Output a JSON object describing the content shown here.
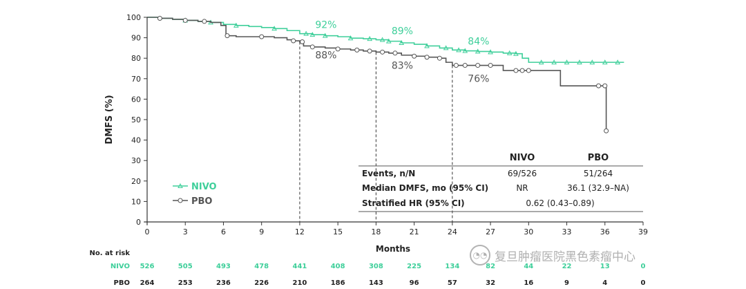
{
  "chart_data": {
    "type": "line",
    "subtype": "kaplan-meier",
    "ylabel": "DMFS (%)",
    "xlabel": "Months",
    "xlim": [
      0,
      39
    ],
    "ylim": [
      0,
      100
    ],
    "x_ticks": [
      0,
      3,
      6,
      9,
      12,
      15,
      18,
      21,
      24,
      27,
      30,
      33,
      36,
      39
    ],
    "y_ticks": [
      0,
      10,
      20,
      30,
      40,
      50,
      60,
      70,
      80,
      90,
      100
    ],
    "landmarks": [
      12,
      18,
      24
    ],
    "colors": {
      "nivo": "#3ecf9a",
      "pbo": "#555555"
    },
    "series": [
      {
        "name": "NIVO",
        "key": "nivo",
        "x": [
          0,
          1,
          2,
          3,
          4,
          5,
          6,
          7,
          8,
          9,
          10,
          11,
          12,
          13,
          14,
          15,
          16,
          17,
          18,
          19,
          20,
          21,
          22,
          23,
          24,
          25,
          26,
          27,
          28,
          29,
          29.5,
          30,
          31,
          32,
          33,
          34,
          35,
          36,
          37,
          37.5
        ],
        "y": [
          100,
          99.5,
          99,
          98.5,
          98,
          97.5,
          96.5,
          96,
          95.5,
          95,
          94.5,
          93.5,
          92,
          91.5,
          91,
          90.5,
          89.8,
          89.5,
          89,
          88.3,
          87.5,
          86.8,
          86,
          85,
          84,
          83.6,
          83.3,
          83,
          82.5,
          82.2,
          80,
          78,
          78,
          78,
          78,
          78,
          78,
          78,
          78,
          78
        ],
        "censor_x": [
          3,
          5,
          7,
          10,
          12.5,
          13,
          14,
          16,
          17.5,
          18.5,
          19,
          20,
          22,
          23.5,
          24.5,
          25,
          26,
          27,
          28.5,
          29,
          31,
          32,
          33,
          34,
          35,
          36,
          37
        ]
      },
      {
        "name": "PBO",
        "key": "pbo",
        "x": [
          0,
          1,
          2,
          3,
          4,
          5,
          5.8,
          6.2,
          7,
          8,
          9,
          10,
          11,
          11.5,
          12,
          12.3,
          13,
          14,
          15,
          16,
          17,
          18,
          19,
          20,
          21,
          22,
          23,
          23.5,
          24,
          25,
          26,
          27,
          28,
          29,
          30,
          31,
          32,
          32.5,
          33,
          34,
          35,
          35.5,
          36,
          36.1
        ],
        "y": [
          100,
          99.5,
          99,
          98.5,
          98,
          97.5,
          96,
          91,
          90.5,
          90.5,
          90.5,
          90,
          89,
          88.5,
          88,
          86,
          85.5,
          85,
          84.5,
          84,
          83.5,
          83,
          82.5,
          81.5,
          81,
          80.5,
          80,
          78,
          76.5,
          76.5,
          76.5,
          76.5,
          74,
          74,
          74,
          74,
          74,
          66.5,
          66.5,
          66.5,
          66.5,
          66.5,
          66.5,
          44.5
        ],
        "censor_x": [
          1,
          3,
          4.5,
          6.3,
          9,
          11.5,
          12.2,
          13,
          15,
          16.5,
          17.5,
          18.5,
          19.5,
          21,
          22,
          23,
          24.3,
          25,
          26,
          27,
          29,
          29.5,
          30,
          35.5,
          36,
          36.1
        ]
      }
    ],
    "landmark_labels": [
      {
        "series": "nivo",
        "x": 12,
        "text": "92%"
      },
      {
        "series": "nivo",
        "x": 18,
        "text": "89%"
      },
      {
        "series": "nivo",
        "x": 24,
        "text": "84%"
      },
      {
        "series": "pbo",
        "x": 12,
        "text": "88%"
      },
      {
        "series": "pbo",
        "x": 18,
        "text": "83%"
      },
      {
        "series": "pbo",
        "x": 24,
        "text": "76%"
      }
    ],
    "legend": [
      {
        "label": "NIVO",
        "key": "nivo"
      },
      {
        "label": "PBO",
        "key": "pbo"
      }
    ],
    "summary_table": {
      "col_headers": [
        "NIVO",
        "PBO"
      ],
      "rows": [
        {
          "label": "Events, n/N",
          "nivo": "69/526",
          "pbo": "51/264"
        },
        {
          "label": "Median DMFS, mo (95% CI)",
          "nivo": "NR",
          "pbo": "36.1 (32.9–NA)"
        },
        {
          "label": "Stratified HR (95% CI)",
          "combined": "0.62 (0.43–0.89)"
        }
      ]
    },
    "risk_table": {
      "title": "No. at risk",
      "rows": [
        {
          "label": "NIVO",
          "key": "nivo",
          "values": [
            "526",
            "505",
            "493",
            "478",
            "441",
            "408",
            "308",
            "225",
            "134",
            "82",
            "44",
            "22",
            "13",
            "0"
          ]
        },
        {
          "label": "PBO",
          "key": "pbo",
          "values": [
            "264",
            "253",
            "236",
            "226",
            "210",
            "186",
            "143",
            "96",
            "57",
            "32",
            "16",
            "9",
            "4",
            "0"
          ]
        }
      ]
    }
  },
  "watermark": {
    "icon": "wechat-icon",
    "text": "复旦肿瘤医院黑色素瘤中心"
  }
}
